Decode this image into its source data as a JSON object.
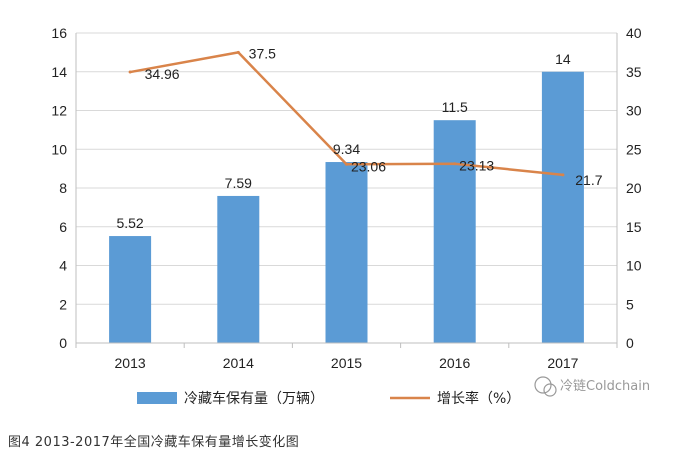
{
  "chart_data": {
    "type": "bar",
    "categories": [
      "2013",
      "2014",
      "2015",
      "2016",
      "2017"
    ],
    "series": [
      {
        "name": "冷藏车保有量（万辆）",
        "type": "bar",
        "axis": "left",
        "values": [
          5.52,
          7.59,
          9.34,
          11.5,
          14
        ],
        "labels": [
          "5.52",
          "7.59",
          "9.34",
          "11.5",
          "14"
        ]
      },
      {
        "name": "增长率（%）",
        "type": "line",
        "axis": "right",
        "values": [
          34.96,
          37.5,
          23.06,
          23.13,
          21.7
        ],
        "labels": [
          "34.96",
          "37.5",
          "23.06",
          "23.13",
          "21.7"
        ]
      }
    ],
    "y_left": {
      "min": 0,
      "max": 16,
      "step": 2
    },
    "y_right": {
      "min": 0,
      "max": 40,
      "step": 5
    },
    "grid": true,
    "legend_position": "bottom",
    "colors": {
      "bar": "#5b9bd5",
      "line": "#d9844a"
    }
  },
  "watermark": "冷链Coldchain",
  "caption": "图4 2013-2017年全国冷藏车保有量增长变化图"
}
